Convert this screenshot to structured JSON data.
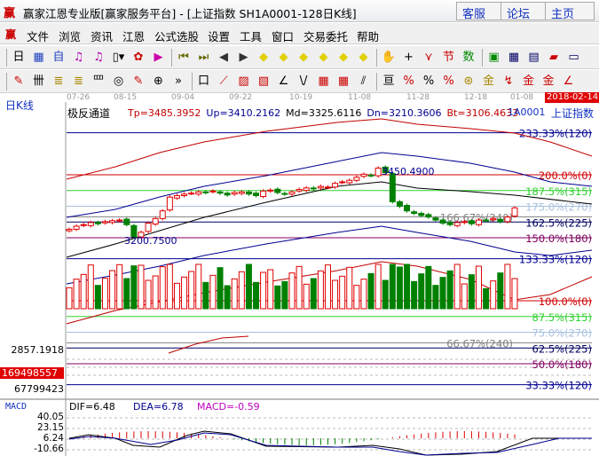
{
  "window": {
    "logo": "赢",
    "title": "赢家江恩专业版[赢家服务平台] - [上证指数  SH1A0001-128日K线]",
    "buttons": [
      "客服",
      "论坛",
      "主页"
    ]
  },
  "menu": {
    "logo": "赢",
    "items": [
      "文件",
      "浏览",
      "资讯",
      "江恩",
      "公式选股",
      "设置",
      "工具",
      "窗口",
      "交易委托",
      "帮助"
    ]
  },
  "toolbar1": [
    {
      "icon": "period-day-icon",
      "glyph": "日▾",
      "color": "#000"
    },
    {
      "icon": "window-icon",
      "glyph": "▦",
      "color": "#2040c0"
    },
    {
      "icon": "self-icon",
      "glyph": "自",
      "color": "#2040c0"
    },
    {
      "icon": "indicator3-icon",
      "glyph": "♫",
      "color": "#b000b0"
    },
    {
      "icon": "indicator9-icon",
      "glyph": "♫",
      "color": "#b000b0"
    },
    {
      "icon": "candle-type-icon",
      "glyph": "▯▾",
      "color": "#000"
    },
    {
      "icon": "gann-icon",
      "glyph": "✿",
      "color": "#c00"
    },
    {
      "icon": "flag-icon",
      "glyph": "▶",
      "color": "#c0a"
    },
    {
      "icon": "first-icon",
      "glyph": "⏮",
      "color": "#660"
    },
    {
      "icon": "last-icon",
      "glyph": "⏭",
      "color": "#660"
    },
    {
      "icon": "prev-icon",
      "glyph": "◀",
      "color": "#333"
    },
    {
      "icon": "next-icon",
      "glyph": "▶",
      "color": "#333"
    },
    {
      "icon": "zoom-left-icon",
      "glyph": "◆",
      "color": "#e0d000"
    },
    {
      "icon": "zoom-right-icon",
      "glyph": "◆",
      "color": "#e0d000"
    },
    {
      "icon": "zoom-in-icon",
      "glyph": "◆",
      "color": "#e0d000"
    },
    {
      "icon": "zoom-out-icon",
      "glyph": "◆",
      "color": "#e0d000"
    },
    {
      "icon": "zoom-all-icon",
      "glyph": "◆",
      "color": "#e0d000"
    },
    {
      "icon": "zoom-vertical-icon",
      "glyph": "◆",
      "color": "#e0d000"
    },
    {
      "icon": "hand-icon",
      "glyph": "✋",
      "color": "#000"
    },
    {
      "icon": "crosshair-icon",
      "glyph": "+",
      "color": "#000"
    },
    {
      "icon": "draw-line-icon",
      "glyph": "⋎",
      "color": "#c00"
    },
    {
      "icon": "calendar-cycle-icon",
      "glyph": "节",
      "color": "#c00"
    },
    {
      "icon": "numbers-icon",
      "glyph": "数",
      "color": "#080"
    },
    {
      "icon": "calendar-icon",
      "glyph": "▣",
      "color": "#080"
    },
    {
      "icon": "calculator-icon",
      "glyph": "▦",
      "color": "#006"
    },
    {
      "icon": "notes-icon",
      "glyph": "▤",
      "color": "#006"
    },
    {
      "icon": "save-icon",
      "glyph": "▰",
      "color": "#c00"
    },
    {
      "icon": "more-icon",
      "glyph": "▭",
      "color": "#006"
    }
  ],
  "toolbar2": [
    {
      "icon": "pen-icon",
      "glyph": "✎",
      "color": "#c00"
    },
    {
      "icon": "grid-icon",
      "glyph": "卌",
      "color": "#000"
    },
    {
      "icon": "gann-square-icon",
      "glyph": "≣",
      "color": "#a80"
    },
    {
      "icon": "gann-square2-icon",
      "glyph": "≣",
      "color": "#a80"
    },
    {
      "icon": "gann-text-icon",
      "glyph": "罒",
      "color": "#000"
    },
    {
      "icon": "spiral-icon",
      "glyph": "◎",
      "color": "#000"
    },
    {
      "icon": "brush-icon",
      "glyph": "✎",
      "color": "#c00"
    },
    {
      "icon": "circle-grid-icon",
      "glyph": "⊕",
      "color": "#000"
    },
    {
      "icon": "expand-icon",
      "glyph": "»",
      "color": "#000"
    },
    {
      "icon": "box-icon",
      "glyph": "口",
      "color": "#000"
    },
    {
      "icon": "fan-icon",
      "glyph": "⟋",
      "color": "#c00"
    },
    {
      "icon": "gann-box-icon",
      "glyph": "▨",
      "color": "#c00"
    },
    {
      "icon": "gann-box2-icon",
      "glyph": "▧",
      "color": "#c00"
    },
    {
      "icon": "angle-icon",
      "glyph": "∠",
      "color": "#000"
    },
    {
      "icon": "wave-icon",
      "glyph": "\\/",
      "color": "#000"
    },
    {
      "icon": "mesh-icon",
      "glyph": "▦",
      "color": "#c00"
    },
    {
      "icon": "mesh2-icon",
      "glyph": "▦",
      "color": "#c00"
    },
    {
      "icon": "parallel-icon",
      "glyph": "⫽",
      "color": "#000"
    },
    {
      "icon": "ruler-icon",
      "glyph": "亘",
      "color": "#000"
    },
    {
      "icon": "percent-line-icon",
      "glyph": "%",
      "color": "#c00"
    },
    {
      "icon": "percent-icon",
      "glyph": "%",
      "color": "#000"
    },
    {
      "icon": "percent-band-icon",
      "glyph": "%",
      "color": "#c00"
    },
    {
      "icon": "gold-icon",
      "glyph": "⊛",
      "color": "#a80"
    },
    {
      "icon": "gold-line-icon",
      "glyph": "金",
      "color": "#a80"
    },
    {
      "icon": "speed-icon",
      "glyph": "↯",
      "color": "#c00"
    },
    {
      "icon": "gold-band-icon",
      "glyph": "金",
      "color": "#c00"
    },
    {
      "icon": "gold2-icon",
      "glyph": "金",
      "color": "#c00"
    },
    {
      "icon": "angle-line-icon",
      "glyph": "∠",
      "color": "#c00"
    }
  ],
  "chart": {
    "period_label": "日K线",
    "dates": [
      "07-26",
      "08-15",
      "09-04",
      "09-22",
      "10-19",
      "11-08",
      "11-28",
      "12-18",
      "01-08"
    ],
    "current_date": "2018-02-14",
    "indicator_name": "极反通道",
    "params": [
      {
        "text": "Tp=3485.3952",
        "color": "#c00000"
      },
      {
        "text": "Up=3410.2162",
        "color": "#000090"
      },
      {
        "text": "Md=3325.6116",
        "color": "#000"
      },
      {
        "text": "Dn=3210.3606",
        "color": "#000090"
      },
      {
        "text": "Bt=3106.4633",
        "color": "#c00000"
      }
    ],
    "code": "1A0001",
    "name": "上证指数",
    "high_mark": "3450.4900",
    "low_mark": "3200.7500",
    "price_axis": "2857.1918",
    "levels": [
      {
        "pct": 233.33,
        "label": "233.33%(120)",
        "color": "#000090"
      },
      {
        "pct": 200,
        "label": "200.0%(0)",
        "color": "#d00000"
      },
      {
        "pct": 187.5,
        "label": "187.5%(315)",
        "color": "#30d030"
      },
      {
        "pct": 175,
        "label": "175.0%(270)",
        "color": "#a8c0e0"
      },
      {
        "pct": 166.67,
        "label": "166.67%(240)",
        "color": "#808080"
      },
      {
        "pct": 162.5,
        "label": "162.5%(225)",
        "color": "#000060"
      },
      {
        "pct": 150,
        "label": "150.0%(180)",
        "color": "#800060"
      },
      {
        "pct": 133.33,
        "label": "133.33%(120)",
        "color": "#000090"
      },
      {
        "pct": 100,
        "label": "100.0%(0)",
        "color": "#d00000"
      },
      {
        "pct": 87.5,
        "label": "87.5%(315)",
        "color": "#30d030"
      },
      {
        "pct": 75,
        "label": "75.0%(270)",
        "color": "#a8c0e0"
      },
      {
        "pct": 66.67,
        "label": "66.67%(240)",
        "color": "#808080"
      },
      {
        "pct": 62.5,
        "label": "62.5%(225)",
        "color": "#000060"
      },
      {
        "pct": 50,
        "label": "50.0%(180)",
        "color": "#800060"
      },
      {
        "pct": 33.33,
        "label": "33.33%(120)",
        "color": "#000090"
      }
    ],
    "closes": [
      3240,
      3250,
      3255,
      3262,
      3258,
      3265,
      3268,
      3270,
      3255,
      3215,
      3230,
      3260,
      3275,
      3300,
      3345,
      3350,
      3355,
      3358,
      3362,
      3360,
      3365,
      3358,
      3352,
      3360,
      3362,
      3355,
      3350,
      3365,
      3368,
      3360,
      3355,
      3362,
      3370,
      3375,
      3372,
      3380,
      3378,
      3390,
      3395,
      3400,
      3410,
      3420,
      3415,
      3440,
      3425,
      3330,
      3315,
      3300,
      3292,
      3285,
      3280,
      3270,
      3260,
      3255,
      3262,
      3265,
      3258,
      3270,
      3268,
      3275,
      3265,
      3280,
      3310
    ],
    "volume": {
      "value": "169498557",
      "axis": [
        "67799423"
      ]
    },
    "macd": {
      "title": "MACD",
      "dif": "DIF=6.48",
      "dea": "DEA=6.78",
      "macd": "MACD=-0.59",
      "axis": [
        "40.05",
        "23.15",
        "6.24",
        "-10.66"
      ]
    }
  }
}
